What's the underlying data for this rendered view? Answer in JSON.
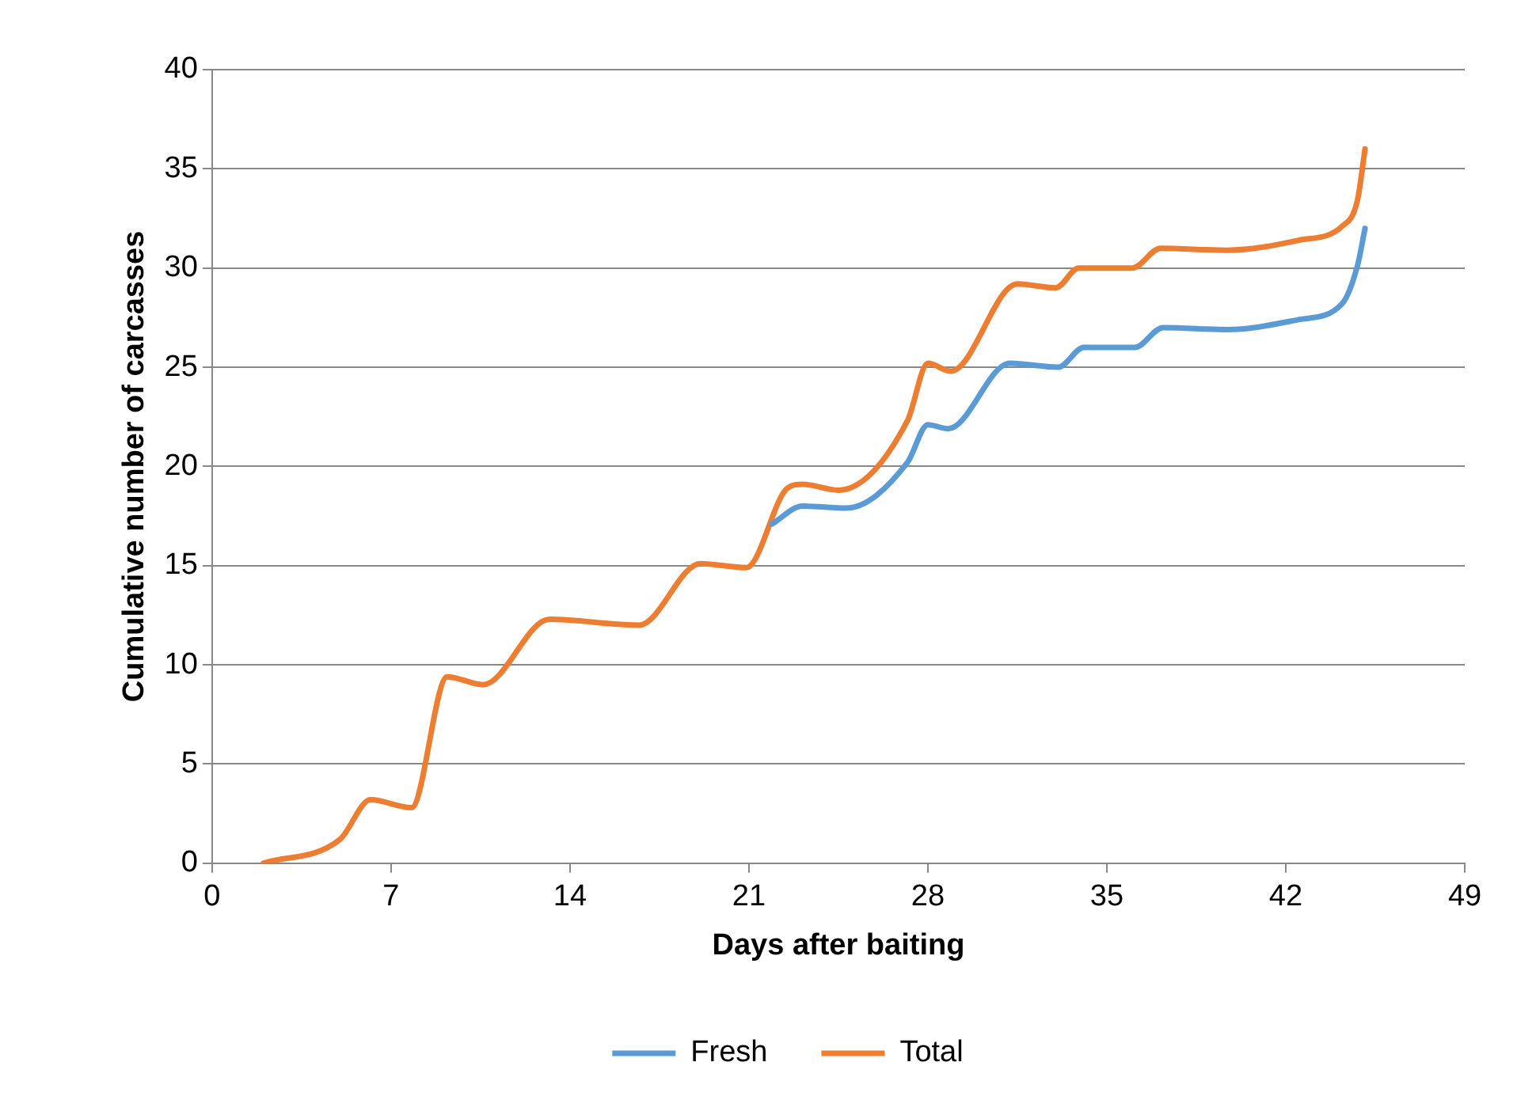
{
  "chart_data": {
    "type": "line",
    "xlabel": "Days after baiting",
    "ylabel": "Cumulative number of carcasses",
    "series": [
      {
        "name": "Fresh",
        "color": "#5b9bd5",
        "x": [
          21.9,
          23.1,
          24.8,
          27.2,
          28,
          28.8,
          31.2,
          33.1,
          34.1,
          36.1,
          37.2,
          39.7,
          42.5,
          44.2,
          44.8,
          45.1
        ],
        "values": [
          17.1,
          18,
          17.9,
          20.2,
          22.1,
          21.9,
          25.2,
          25,
          26,
          26,
          27,
          26.9,
          27.4,
          28.2,
          30.1,
          32
        ]
      },
      {
        "name": "Total",
        "color": "#ed7d31",
        "x": [
          2,
          5,
          6.2,
          7.8,
          9.2,
          10.6,
          13.2,
          16.7,
          19.1,
          20.9,
          22.5,
          23.1,
          24.5,
          27.2,
          28,
          28.9,
          31.5,
          33,
          33.9,
          36,
          37.1,
          39.7,
          42.5,
          44.2,
          44.8,
          45.1
        ],
        "values": [
          0,
          1.2,
          3.2,
          2.8,
          9.4,
          9,
          12.3,
          12,
          15.1,
          14.9,
          18.9,
          19.1,
          18.8,
          22.3,
          25.2,
          24.8,
          29.2,
          29,
          30,
          30,
          31,
          30.9,
          31.4,
          32.1,
          33.4,
          36
        ]
      }
    ],
    "xlim": [
      0,
      49
    ],
    "xticks": [
      0,
      7,
      14,
      21,
      28,
      35,
      42,
      49
    ],
    "ylim": [
      0,
      40
    ],
    "yticks": [
      0,
      5,
      10,
      15,
      20,
      25,
      30,
      35,
      40
    ],
    "grid": "y",
    "legend": "bottom",
    "marker": "none",
    "line_style": "solid"
  }
}
